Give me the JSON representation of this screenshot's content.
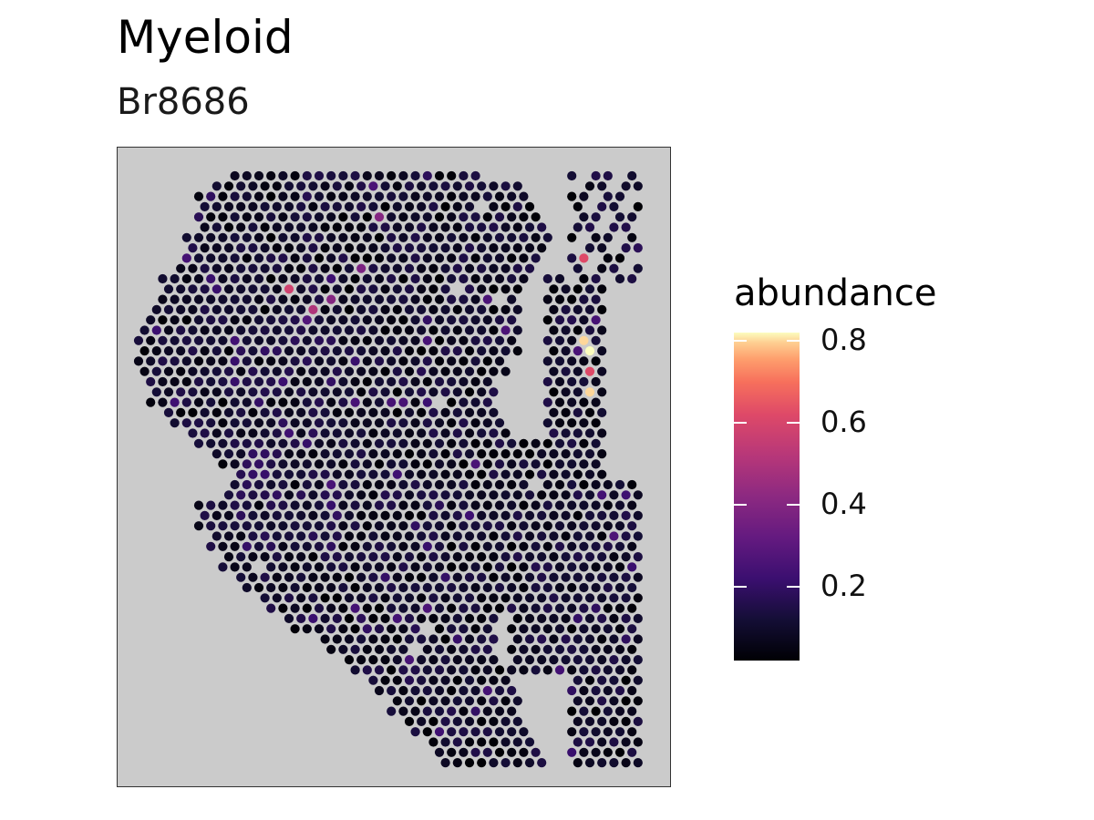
{
  "chart_data": {
    "type": "scatter",
    "title": "Myeloid",
    "subtitle": "Br8686",
    "legend": {
      "title": "abundance",
      "placement": "right",
      "ticks": [
        "0.2",
        "0.4",
        "0.6",
        "0.8"
      ],
      "tick_values": [
        0.2,
        0.4,
        0.6,
        0.8
      ],
      "range": [
        0.02,
        0.82
      ],
      "palette": "magma"
    },
    "panel_background": "#cbcbcb",
    "grid": false,
    "spots_summary": "Several thousand hexagonally packed tissue spots; most abundance values are approximately 0.02-0.20, with scattered hotspots listed below.",
    "hotspots": [
      {
        "row": 17,
        "col": 37,
        "abundance": 0.82
      },
      {
        "row": 16,
        "col": 37,
        "abundance": 0.8
      },
      {
        "row": 21,
        "col": 37,
        "abundance": 0.8
      },
      {
        "row": 19,
        "col": 37,
        "abundance": 0.62
      },
      {
        "row": 8,
        "col": 37,
        "abundance": 0.62
      },
      {
        "row": 6,
        "col": 37,
        "abundance": 0.58
      },
      {
        "row": 11,
        "col": 12,
        "abundance": 0.58
      },
      {
        "row": 20,
        "col": 32,
        "abundance": 0.6
      },
      {
        "row": 21,
        "col": 33,
        "abundance": 0.5
      },
      {
        "row": 13,
        "col": 14,
        "abundance": 0.5
      },
      {
        "row": 0,
        "col": 31,
        "abundance": 0.45
      },
      {
        "row": 25,
        "col": 33,
        "abundance": 0.45
      },
      {
        "row": 12,
        "col": 16,
        "abundance": 0.4
      },
      {
        "row": 9,
        "col": 18,
        "abundance": 0.38
      },
      {
        "row": 4,
        "col": 20,
        "abundance": 0.4
      }
    ]
  }
}
